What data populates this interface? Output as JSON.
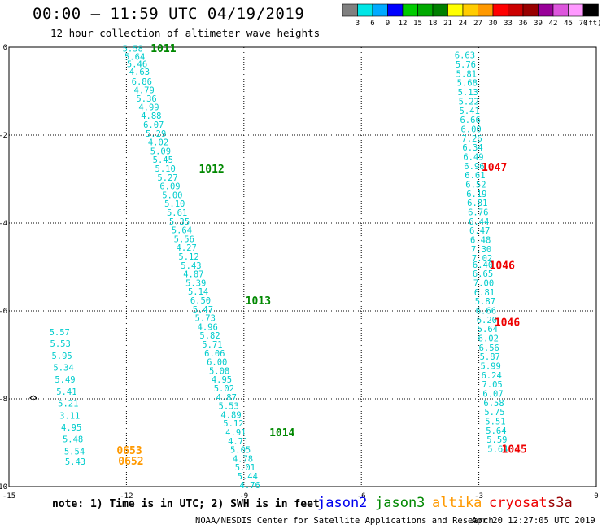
{
  "title": "00:00 – 11:59 UTC 04/19/2019",
  "subtitle": "12 hour collection of altimeter wave heights",
  "colorbar": {
    "colors": [
      "#808080",
      "#00e6e6",
      "#00aaff",
      "#0000ff",
      "#00cc00",
      "#00aa00",
      "#008000",
      "#ffff00",
      "#ffcc00",
      "#ff9900",
      "#ff0000",
      "#cc0000",
      "#990000",
      "#990099",
      "#dd55dd",
      "#ff99ff",
      "#000000"
    ],
    "labels": [
      "3",
      "6",
      "9",
      "12",
      "15",
      "18",
      "21",
      "24",
      "27",
      "30",
      "33",
      "36",
      "39",
      "42",
      "45",
      "70"
    ],
    "unit": "(ft)"
  },
  "axes": {
    "x_ticks": [
      "-15",
      "-12",
      "-9",
      "-6",
      "-3",
      "0"
    ],
    "y_ticks": [
      "0",
      "-2",
      "-4",
      "-6",
      "-8",
      "-10"
    ]
  },
  "footer_note": "note:  1) Time is in UTC; 2) SWH is in feet",
  "legend": [
    {
      "name": "jason2",
      "color": "#0000ee"
    },
    {
      "name": "jason3",
      "color": "#008800"
    },
    {
      "name": "altika",
      "color": "#ff9900"
    },
    {
      "name": "cryosat",
      "color": "#ee0000"
    },
    {
      "name": "s3a",
      "color": "#990000"
    }
  ],
  "footer_credit": "NOAA/NESDIS Center for Satellite Applications and Research",
  "footer_time": "Apr 20 12:27:05 UTC 2019",
  "chart_data": {
    "type": "scatter",
    "xlim": [
      -15,
      0
    ],
    "ylim": [
      -10,
      0
    ],
    "grid": true,
    "swh_color": "#00cccc",
    "tracks": [
      {
        "satellite": "jason3",
        "color": "#008800",
        "swh": [
          {
            "x": -12.1,
            "y": -0.03,
            "v": "5.58"
          },
          {
            "x": -12.05,
            "y": -0.21,
            "v": "5.64"
          },
          {
            "x": -11.99,
            "y": -0.38,
            "v": "5.46"
          },
          {
            "x": -11.93,
            "y": -0.56,
            "v": "4.63"
          },
          {
            "x": -11.87,
            "y": -0.78,
            "v": "6.86"
          },
          {
            "x": -11.81,
            "y": -0.97,
            "v": "4.79"
          },
          {
            "x": -11.75,
            "y": -1.17,
            "v": "5.36"
          },
          {
            "x": -11.69,
            "y": -1.36,
            "v": "4.99"
          },
          {
            "x": -11.63,
            "y": -1.56,
            "v": "4.88"
          },
          {
            "x": -11.57,
            "y": -1.76,
            "v": "6.07"
          },
          {
            "x": -11.51,
            "y": -1.96,
            "v": "5.29"
          },
          {
            "x": -11.45,
            "y": -2.16,
            "v": "4.02"
          },
          {
            "x": -11.39,
            "y": -2.36,
            "v": "5.09"
          },
          {
            "x": -11.33,
            "y": -2.56,
            "v": "5.45"
          },
          {
            "x": -11.27,
            "y": -2.76,
            "v": "5.10"
          },
          {
            "x": -11.21,
            "y": -2.96,
            "v": "5.27"
          },
          {
            "x": -11.15,
            "y": -3.16,
            "v": "6.09"
          },
          {
            "x": -11.09,
            "y": -3.36,
            "v": "5.00"
          },
          {
            "x": -11.03,
            "y": -3.56,
            "v": "5.10"
          },
          {
            "x": -10.97,
            "y": -3.76,
            "v": "5.61"
          },
          {
            "x": -10.91,
            "y": -3.96,
            "v": "5.35"
          },
          {
            "x": -10.85,
            "y": -4.16,
            "v": "5.64"
          },
          {
            "x": -10.79,
            "y": -4.36,
            "v": "5.56"
          },
          {
            "x": -10.73,
            "y": -4.56,
            "v": "4.27"
          },
          {
            "x": -10.67,
            "y": -4.76,
            "v": "5.12"
          },
          {
            "x": -10.61,
            "y": -4.96,
            "v": "5.43"
          },
          {
            "x": -10.55,
            "y": -5.16,
            "v": "4.87"
          },
          {
            "x": -10.49,
            "y": -5.36,
            "v": "5.39"
          },
          {
            "x": -10.43,
            "y": -5.56,
            "v": "5.14"
          },
          {
            "x": -10.37,
            "y": -5.76,
            "v": "6.50"
          },
          {
            "x": -10.31,
            "y": -5.96,
            "v": "5.47"
          },
          {
            "x": -10.25,
            "y": -6.16,
            "v": "5.73"
          },
          {
            "x": -10.19,
            "y": -6.36,
            "v": "4.96"
          },
          {
            "x": -10.13,
            "y": -6.56,
            "v": "5.82"
          },
          {
            "x": -10.07,
            "y": -6.76,
            "v": "5.71"
          },
          {
            "x": -10.01,
            "y": -6.96,
            "v": "6.06"
          },
          {
            "x": -9.95,
            "y": -7.16,
            "v": "6.00"
          },
          {
            "x": -9.89,
            "y": -7.36,
            "v": "5.08"
          },
          {
            "x": -9.83,
            "y": -7.56,
            "v": "4.95"
          },
          {
            "x": -9.77,
            "y": -7.76,
            "v": "5.02"
          },
          {
            "x": -9.71,
            "y": -7.96,
            "v": "4.87"
          },
          {
            "x": -9.65,
            "y": -8.16,
            "v": "5.53"
          },
          {
            "x": -9.59,
            "y": -8.36,
            "v": "4.89"
          },
          {
            "x": -9.53,
            "y": -8.56,
            "v": "5.12"
          },
          {
            "x": -9.47,
            "y": -8.76,
            "v": "4.91"
          },
          {
            "x": -9.41,
            "y": -8.96,
            "v": "4.71"
          },
          {
            "x": -9.35,
            "y": -9.16,
            "v": "5.05"
          },
          {
            "x": -9.29,
            "y": -9.36,
            "v": "4.78"
          },
          {
            "x": -9.23,
            "y": -9.56,
            "v": "5.01"
          },
          {
            "x": -9.17,
            "y": -9.76,
            "v": "5.44"
          },
          {
            "x": -9.11,
            "y": -9.96,
            "v": "4.76"
          }
        ],
        "time_labels": [
          {
            "x": -11.38,
            "y": -0.02,
            "t": "1011"
          },
          {
            "x": -10.15,
            "y": -2.76,
            "t": "1012"
          },
          {
            "x": -8.96,
            "y": -5.76,
            "t": "1013"
          },
          {
            "x": -8.35,
            "y": -8.76,
            "t": "1014"
          }
        ]
      },
      {
        "satellite": "cryosat",
        "color": "#ee0000",
        "swh": [
          {
            "x": -3.62,
            "y": -0.18,
            "v": "6.63"
          },
          {
            "x": -3.6,
            "y": -0.39,
            "v": "5.76"
          },
          {
            "x": -3.58,
            "y": -0.6,
            "v": "5.81"
          },
          {
            "x": -3.56,
            "y": -0.81,
            "v": "5.68"
          },
          {
            "x": -3.54,
            "y": -1.02,
            "v": "5.13"
          },
          {
            "x": -3.52,
            "y": -1.23,
            "v": "5.22"
          },
          {
            "x": -3.5,
            "y": -1.44,
            "v": "5.41"
          },
          {
            "x": -3.48,
            "y": -1.65,
            "v": "6.66"
          },
          {
            "x": -3.46,
            "y": -1.86,
            "v": "6.00"
          },
          {
            "x": -3.44,
            "y": -2.07,
            "v": "7.26"
          },
          {
            "x": -3.42,
            "y": -2.28,
            "v": "6.34"
          },
          {
            "x": -3.4,
            "y": -2.49,
            "v": "6.49"
          },
          {
            "x": -3.38,
            "y": -2.7,
            "v": "6.96"
          },
          {
            "x": -3.36,
            "y": -2.91,
            "v": "6.61"
          },
          {
            "x": -3.34,
            "y": -3.12,
            "v": "6.52"
          },
          {
            "x": -3.32,
            "y": -3.33,
            "v": "6.19"
          },
          {
            "x": -3.3,
            "y": -3.54,
            "v": "6.81"
          },
          {
            "x": -3.28,
            "y": -3.75,
            "v": "6.76"
          },
          {
            "x": -3.26,
            "y": -3.96,
            "v": "6.44"
          },
          {
            "x": -3.24,
            "y": -4.17,
            "v": "6.47"
          },
          {
            "x": -3.22,
            "y": -4.38,
            "v": "6.48"
          },
          {
            "x": -3.2,
            "y": -4.59,
            "v": "7.30"
          },
          {
            "x": -3.18,
            "y": -4.8,
            "v": "7.02"
          },
          {
            "x": -3.16,
            "y": -4.94,
            "v": "6.40"
          },
          {
            "x": -3.16,
            "y": -5.15,
            "v": "6.65"
          },
          {
            "x": -3.14,
            "y": -5.36,
            "v": "7.00"
          },
          {
            "x": -3.12,
            "y": -5.57,
            "v": "6.81"
          },
          {
            "x": -3.1,
            "y": -5.78,
            "v": "5.87"
          },
          {
            "x": -3.08,
            "y": -5.99,
            "v": "6.66"
          },
          {
            "x": -3.06,
            "y": -6.2,
            "v": "6.20"
          },
          {
            "x": -3.04,
            "y": -6.41,
            "v": "5.64"
          },
          {
            "x": -3.02,
            "y": -6.62,
            "v": "6.02"
          },
          {
            "x": -3.0,
            "y": -6.83,
            "v": "6.56"
          },
          {
            "x": -2.98,
            "y": -7.04,
            "v": "5.87"
          },
          {
            "x": -2.96,
            "y": -7.25,
            "v": "5.99"
          },
          {
            "x": -2.94,
            "y": -7.46,
            "v": "6.24"
          },
          {
            "x": -2.92,
            "y": -7.67,
            "v": "7.05"
          },
          {
            "x": -2.9,
            "y": -7.88,
            "v": "6.07"
          },
          {
            "x": -2.88,
            "y": -8.09,
            "v": "6.58"
          },
          {
            "x": -2.86,
            "y": -8.3,
            "v": "5.75"
          },
          {
            "x": -2.84,
            "y": -8.51,
            "v": "5.51"
          },
          {
            "x": -2.82,
            "y": -8.72,
            "v": "5.64"
          },
          {
            "x": -2.8,
            "y": -8.93,
            "v": "5.59"
          },
          {
            "x": -2.78,
            "y": -9.14,
            "v": "5.64"
          }
        ],
        "time_labels": [
          {
            "x": -2.93,
            "y": -2.72,
            "t": "1047"
          },
          {
            "x": -2.73,
            "y": -4.95,
            "t": "1046"
          },
          {
            "x": -2.6,
            "y": -6.25,
            "t": "1046"
          },
          {
            "x": -2.42,
            "y": -9.14,
            "t": "1045"
          }
        ]
      },
      {
        "satellite": "altika",
        "color": "#ff9900",
        "swh": [
          {
            "x": -13.97,
            "y": -6.48,
            "v": "5.57"
          },
          {
            "x": -13.95,
            "y": -6.74,
            "v": "5.53"
          },
          {
            "x": -13.91,
            "y": -7.02,
            "v": "5.95"
          },
          {
            "x": -13.87,
            "y": -7.29,
            "v": "5.34"
          },
          {
            "x": -13.83,
            "y": -7.56,
            "v": "5.49"
          },
          {
            "x": -13.79,
            "y": -7.83,
            "v": "5.41"
          },
          {
            "x": -13.75,
            "y": -8.1,
            "v": "5.21"
          },
          {
            "x": -13.71,
            "y": -8.38,
            "v": "3.11"
          },
          {
            "x": -13.67,
            "y": -8.65,
            "v": "4.95"
          },
          {
            "x": -13.63,
            "y": -8.92,
            "v": "5.48"
          },
          {
            "x": -13.59,
            "y": -9.19,
            "v": "5.54"
          },
          {
            "x": -13.57,
            "y": -9.43,
            "v": "5.43"
          }
        ],
        "time_labels": [
          {
            "x": -12.25,
            "y": -9.17,
            "t": "0653"
          },
          {
            "x": -12.21,
            "y": -9.41,
            "t": "0652"
          }
        ]
      }
    ],
    "markers": [
      {
        "x": -14.38,
        "y": -7.98,
        "symbol": "diamond"
      }
    ]
  }
}
